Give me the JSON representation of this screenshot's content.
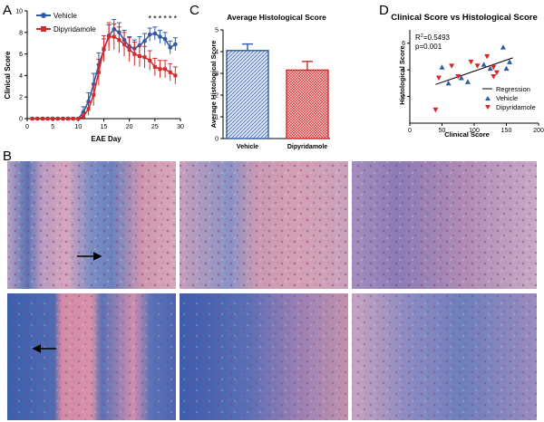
{
  "panel_labels": {
    "a": "A",
    "b": "B",
    "c": "C",
    "d": "D"
  },
  "colors": {
    "vehicle": "#2f5aa8",
    "dipyridamole": "#d42a2a",
    "regression": "#000000"
  },
  "chart_data": [
    {
      "id": "A",
      "type": "line",
      "title": "",
      "xlabel": "EAE Day",
      "ylabel": "Clinical Score",
      "xlim": [
        0,
        30
      ],
      "ylim": [
        0,
        10
      ],
      "xticks": [
        "0",
        "5",
        "10",
        "15",
        "20",
        "25",
        "30"
      ],
      "yticks": [
        "0",
        "2",
        "4",
        "6",
        "8",
        "10"
      ],
      "legend": "top-left",
      "significance_marks": {
        "text": "*",
        "days": [
          24,
          25,
          26,
          27,
          28,
          29
        ],
        "y": 9.3
      },
      "series": [
        {
          "name": "Vehicle",
          "x": [
            1,
            2,
            3,
            4,
            5,
            6,
            7,
            8,
            9,
            10,
            11,
            12,
            13,
            14,
            15,
            16,
            17,
            18,
            19,
            20,
            21,
            22,
            23,
            24,
            25,
            26,
            27,
            28,
            29
          ],
          "y": [
            0,
            0,
            0,
            0,
            0,
            0,
            0,
            0,
            0,
            0,
            0.6,
            1.6,
            3.2,
            5.0,
            6.4,
            7.7,
            8.3,
            8.0,
            7.3,
            6.7,
            6.5,
            6.8,
            7.2,
            7.8,
            7.9,
            7.6,
            7.4,
            6.6,
            6.9
          ],
          "err": [
            0,
            0,
            0,
            0,
            0,
            0,
            0,
            0,
            0,
            0,
            0.5,
            0.8,
            1.0,
            1.1,
            1.0,
            1.0,
            0.9,
            0.9,
            0.9,
            0.9,
            0.8,
            0.8,
            0.7,
            0.6,
            0.6,
            0.6,
            0.6,
            0.6,
            0.6
          ]
        },
        {
          "name": "Dipyridamole",
          "x": [
            1,
            2,
            3,
            4,
            5,
            6,
            7,
            8,
            9,
            10,
            11,
            12,
            13,
            14,
            15,
            16,
            17,
            18,
            19,
            20,
            21,
            22,
            23,
            24,
            25,
            26,
            27,
            28,
            29
          ],
          "y": [
            0,
            0,
            0,
            0,
            0,
            0,
            0,
            0,
            0,
            0,
            0.2,
            0.9,
            2.2,
            4.3,
            6.5,
            7.6,
            7.6,
            7.3,
            6.9,
            6.4,
            6.0,
            5.8,
            5.7,
            5.4,
            4.8,
            4.6,
            4.6,
            4.3,
            4.0
          ],
          "err": [
            0,
            0,
            0,
            0,
            0,
            0,
            0,
            0,
            0,
            0,
            0.3,
            0.6,
            1.0,
            1.2,
            1.2,
            1.3,
            1.2,
            1.2,
            1.1,
            1.1,
            1.1,
            1.0,
            1.0,
            0.9,
            0.8,
            0.8,
            0.8,
            0.8,
            0.8
          ]
        }
      ]
    },
    {
      "id": "C",
      "type": "bar",
      "title": "Average Histological Score",
      "xlabel": "",
      "ylabel": "Average Histological Score",
      "ylim": [
        0,
        5
      ],
      "yticks": [
        "0",
        "1",
        "2",
        "3",
        "4",
        "5"
      ],
      "categories": [
        "Vehicle",
        "Dipyridamole"
      ],
      "values": [
        4.05,
        3.15
      ],
      "errors": [
        0.3,
        0.4
      ]
    },
    {
      "id": "D",
      "type": "scatter",
      "title": "Clinical Score vs Histological Score",
      "xlabel": "Clinical Score",
      "ylabel": "Histological Score",
      "xlim": [
        0,
        200
      ],
      "ylim": [
        0,
        7
      ],
      "xticks": [
        "0",
        "50",
        "100",
        "150",
        "200"
      ],
      "yticks": [
        "2",
        "4",
        "6"
      ],
      "legend": "right",
      "annotation": {
        "r2_base": "R",
        "r2_sup": "2",
        "r2_value": "=0.5493",
        "p": "p=0.001"
      },
      "regression": {
        "name": "Regression",
        "x": [
          40,
          160
        ],
        "y": [
          2.9,
          4.9
        ]
      },
      "series": [
        {
          "name": "Vehicle",
          "marker": "triangle-up",
          "x": [
            50,
            60,
            80,
            90,
            115,
            125,
            145,
            150,
            155
          ],
          "y": [
            4.2,
            3.0,
            3.4,
            3.1,
            4.4,
            4.1,
            5.7,
            4.1,
            4.6
          ]
        },
        {
          "name": "Dipyridamole",
          "marker": "triangle-down",
          "x": [
            40,
            45,
            65,
            75,
            95,
            105,
            120,
            130,
            130,
            135
          ],
          "y": [
            1.0,
            3.4,
            4.3,
            3.5,
            4.6,
            4.3,
            5.0,
            3.5,
            4.2,
            3.8
          ]
        }
      ]
    }
  ]
}
